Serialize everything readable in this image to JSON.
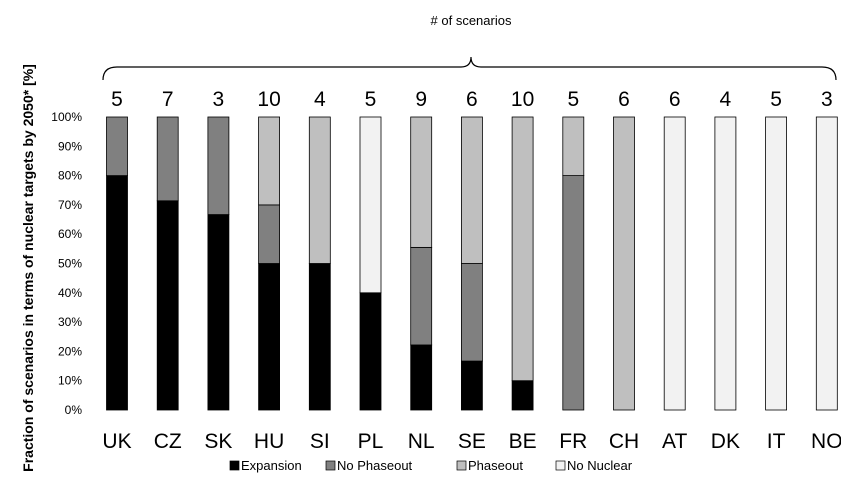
{
  "chart_data": {
    "type": "bar",
    "stacked": true,
    "title": "# of scenarios",
    "ylabel": "Fraction of scenarios in terms of nuclear targets by 2050* [%]",
    "xlabel": "",
    "ylim": [
      0,
      100
    ],
    "yticks": [
      "0%",
      "10%",
      "20%",
      "30%",
      "40%",
      "50%",
      "60%",
      "70%",
      "80%",
      "90%",
      "100%"
    ],
    "categories": [
      "UK",
      "CZ",
      "SK",
      "HU",
      "SI",
      "PL",
      "NL",
      "SE",
      "BE",
      "FR",
      "CH",
      "AT",
      "DK",
      "IT",
      "NO"
    ],
    "counts": [
      "5",
      "7",
      "3",
      "10",
      "4",
      "5",
      "9",
      "6",
      "10",
      "5",
      "6",
      "6",
      "4",
      "5",
      "3"
    ],
    "series": [
      {
        "name": "Expansion",
        "color": "#000000",
        "values": [
          80,
          71.4,
          66.7,
          50,
          50,
          40,
          22.2,
          16.7,
          10,
          0,
          0,
          0,
          0,
          0,
          0
        ]
      },
      {
        "name": "No Phaseout",
        "color": "#808080",
        "values": [
          20,
          28.6,
          33.3,
          20,
          0,
          0,
          33.3,
          33.3,
          0,
          80,
          0,
          0,
          0,
          0,
          0
        ]
      },
      {
        "name": "Phaseout",
        "color": "#bfbfbf",
        "values": [
          0,
          0,
          0,
          30,
          50,
          0,
          44.5,
          50,
          90,
          20,
          100,
          0,
          0,
          0,
          0
        ]
      },
      {
        "name": "No Nuclear",
        "color": "#f2f2f2",
        "values": [
          0,
          0,
          0,
          0,
          0,
          60,
          0,
          0,
          0,
          0,
          0,
          100,
          100,
          100,
          100
        ]
      }
    ],
    "legend_position": "bottom",
    "grid": false
  }
}
